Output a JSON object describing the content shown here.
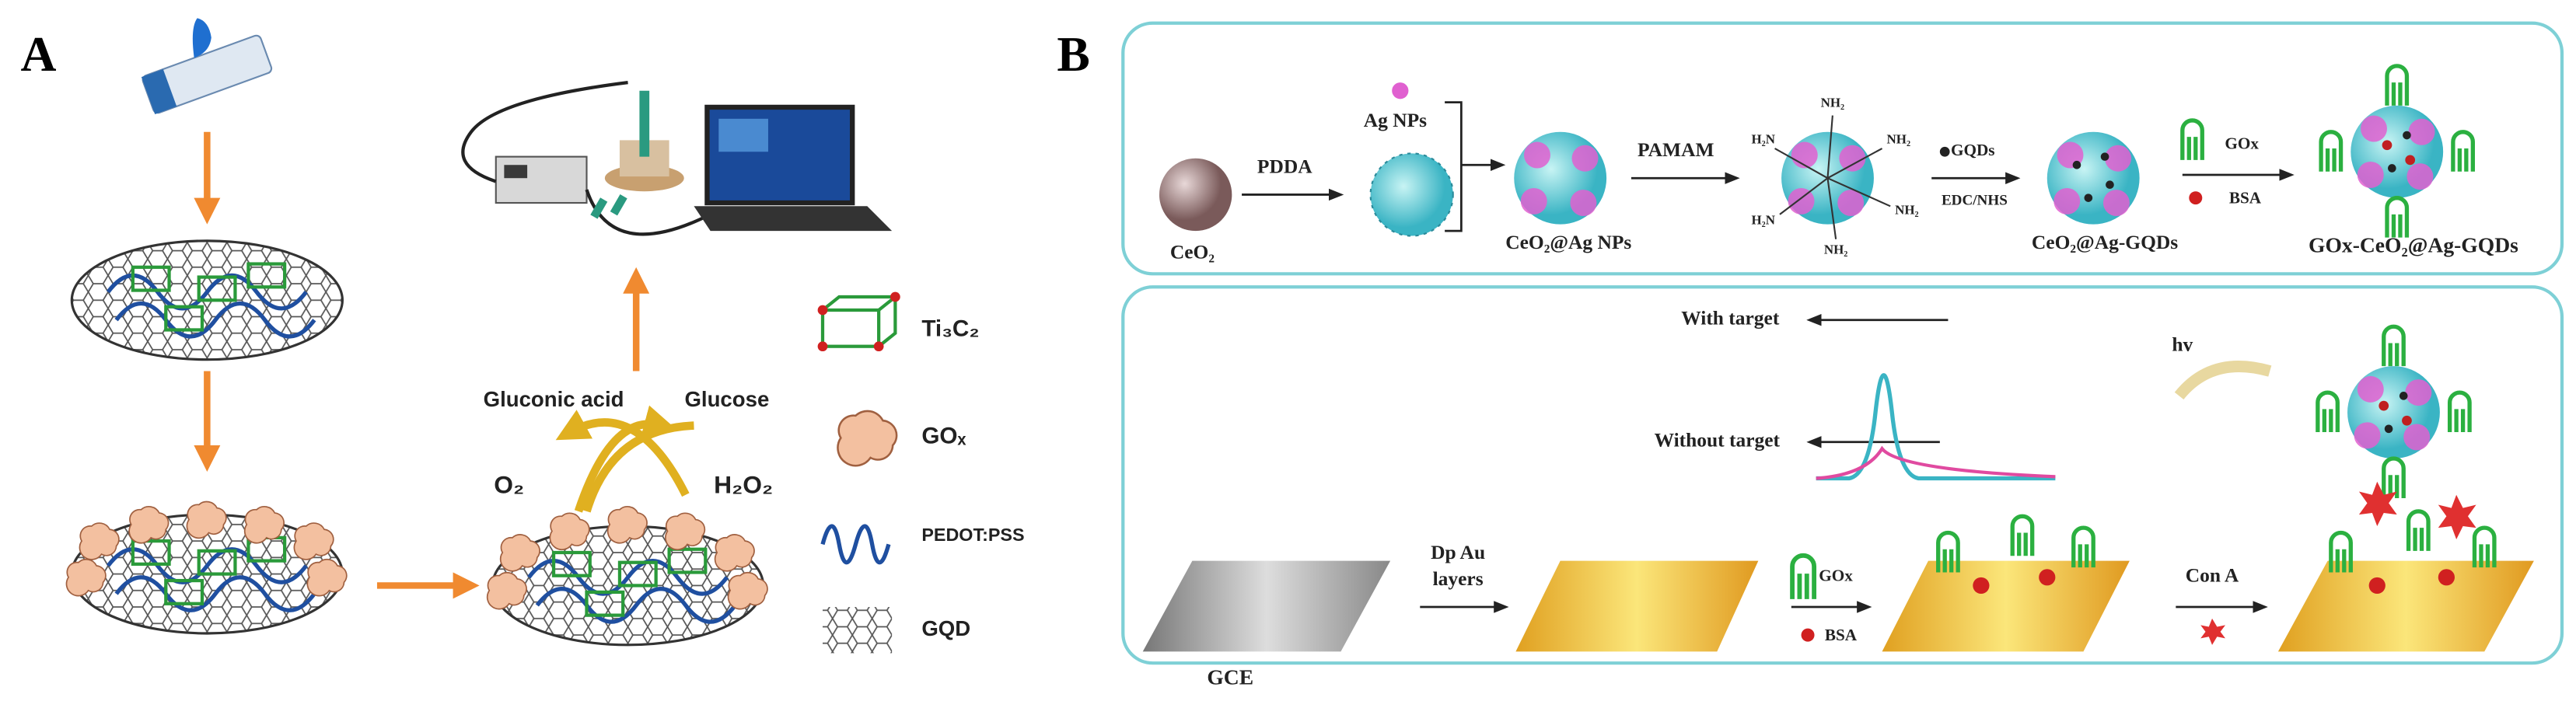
{
  "panel_a": {
    "label": "A",
    "reaction": {
      "product": "Gluconic acid",
      "substrate": "Glucose",
      "oxygen": "O₂",
      "peroxide": "H₂O₂"
    },
    "legend": [
      {
        "label": "Ti₃C₂"
      },
      {
        "label": "GOₓ"
      },
      {
        "label": "PEDOT:PSS"
      },
      {
        "label": "GQD"
      }
    ]
  },
  "panel_b": {
    "label": "B",
    "synthesis": {
      "core": "CeO₂",
      "step1": "PDDA",
      "particles": "Ag NPs",
      "intermediate1": "CeO₂@Ag NPs",
      "step2": "PAMAM",
      "amine_groups": [
        "H₂N",
        "NH₂",
        "NH₂",
        "NH₂",
        "H₂N",
        "NH₂"
      ],
      "step3_reagent": "GQDs",
      "step3_coupling": "EDC/NHS",
      "intermediate2": "CeO₂@Ag-GQDs",
      "step4_enzyme": "GOx",
      "step4_blocker": "BSA",
      "product": "GOx-CeO₂@Ag-GQDs"
    },
    "detection": {
      "with_target": "With target",
      "without_target": "Without target",
      "light": "hv",
      "electrode": "GCE",
      "deposition": [
        "Dp Au",
        "layers"
      ],
      "enzyme": "GOx",
      "blocker": "BSA",
      "analyte": "Con A"
    }
  }
}
